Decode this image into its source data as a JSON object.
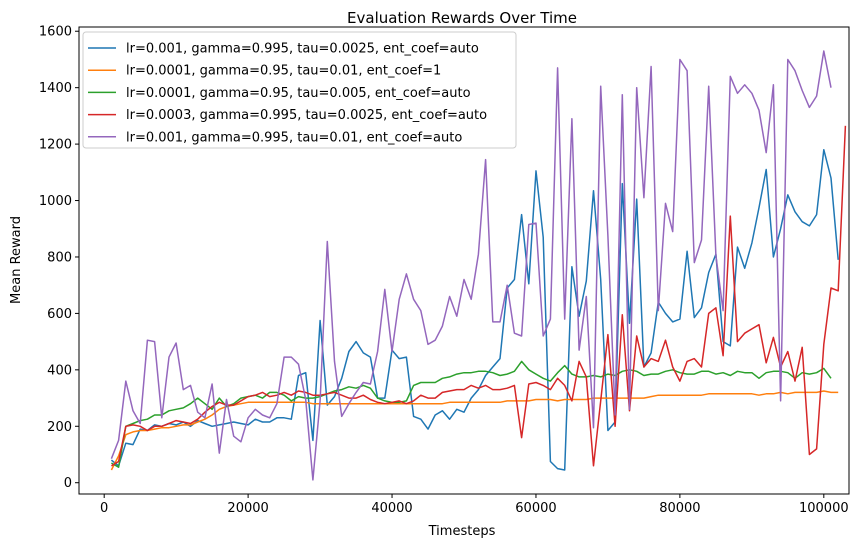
{
  "chart_data": {
    "type": "line",
    "title": "Evaluation Rewards Over Time",
    "xlabel": "Timesteps",
    "ylabel": "Mean Reward",
    "xlim": [
      -3500,
      103500
    ],
    "ylim": [
      -40,
      1615
    ],
    "xticks": [
      0,
      20000,
      40000,
      60000,
      80000,
      100000
    ],
    "xtick_labels": [
      "0",
      "20000",
      "40000",
      "60000",
      "80000",
      "100000"
    ],
    "yticks": [
      0,
      200,
      400,
      600,
      800,
      1000,
      1200,
      1400,
      1600
    ],
    "ytick_labels": [
      "0",
      "200",
      "400",
      "600",
      "800",
      "1000",
      "1200",
      "1400",
      "1600"
    ],
    "grid": false,
    "legend_position": "top-left",
    "x_start": 1000,
    "x_step": 1000,
    "series": [
      {
        "name": "lr=0.001, gamma=0.995, tau=0.0025, ent_coef=auto",
        "color": "#1f77b4",
        "values": [
          80,
          60,
          140,
          135,
          190,
          185,
          205,
          200,
          210,
          205,
          215,
          200,
          220,
          210,
          200,
          205,
          210,
          215,
          210,
          205,
          225,
          215,
          215,
          230,
          230,
          225,
          380,
          390,
          150,
          575,
          275,
          305,
          370,
          465,
          500,
          460,
          445,
          300,
          300,
          470,
          440,
          445,
          235,
          225,
          190,
          240,
          255,
          225,
          260,
          250,
          300,
          330,
          380,
          410,
          440,
          690,
          720,
          950,
          705,
          1105,
          870,
          75,
          50,
          45,
          765,
          590,
          715,
          1035,
          720,
          185,
          215,
          1060,
          565,
          1005,
          410,
          460,
          640,
          600,
          570,
          580,
          820,
          585,
          620,
          745,
          810,
          500,
          485,
          835,
          760,
          850,
          975,
          1110,
          800,
          900,
          1020,
          960,
          925,
          910,
          950,
          1180,
          1080,
          790
        ]
      },
      {
        "name": "lr=0.0001, gamma=0.95, tau=0.01, ent_coef=1",
        "color": "#ff7f0e",
        "values": [
          45,
          95,
          170,
          180,
          185,
          185,
          190,
          195,
          195,
          200,
          205,
          205,
          215,
          225,
          240,
          260,
          270,
          275,
          280,
          285,
          285,
          285,
          285,
          285,
          285,
          285,
          285,
          285,
          280,
          280,
          280,
          280,
          280,
          280,
          280,
          280,
          280,
          280,
          280,
          280,
          280,
          280,
          280,
          280,
          280,
          280,
          280,
          285,
          285,
          285,
          285,
          285,
          285,
          285,
          285,
          290,
          290,
          290,
          290,
          295,
          295,
          295,
          290,
          295,
          295,
          295,
          295,
          300,
          300,
          300,
          300,
          300,
          300,
          300,
          300,
          305,
          310,
          310,
          310,
          310,
          310,
          310,
          310,
          315,
          315,
          315,
          315,
          315,
          315,
          315,
          310,
          315,
          315,
          320,
          315,
          320,
          320,
          320,
          320,
          325,
          320,
          320
        ]
      },
      {
        "name": "lr=0.0001, gamma=0.95, tau=0.005, ent_coef=auto",
        "color": "#2ca02c",
        "values": [
          70,
          55,
          200,
          210,
          220,
          225,
          240,
          240,
          255,
          260,
          265,
          280,
          300,
          280,
          260,
          300,
          270,
          280,
          300,
          305,
          310,
          300,
          320,
          320,
          310,
          290,
          305,
          300,
          300,
          305,
          315,
          325,
          330,
          340,
          335,
          345,
          335,
          300,
          290,
          285,
          285,
          290,
          345,
          355,
          355,
          355,
          370,
          375,
          385,
          390,
          390,
          395,
          395,
          390,
          380,
          385,
          395,
          430,
          400,
          385,
          370,
          360,
          390,
          415,
          385,
          375,
          375,
          380,
          375,
          385,
          380,
          395,
          400,
          395,
          380,
          385,
          385,
          395,
          400,
          390,
          385,
          385,
          395,
          395,
          385,
          390,
          380,
          395,
          390,
          390,
          370,
          390,
          395,
          395,
          390,
          370,
          390,
          385,
          390,
          405,
          370
        ]
      },
      {
        "name": "lr=0.0003, gamma=0.995, tau=0.0025, ent_coef=auto",
        "color": "#d62728",
        "values": [
          60,
          75,
          200,
          205,
          200,
          185,
          200,
          200,
          210,
          220,
          215,
          210,
          225,
          250,
          270,
          285,
          275,
          275,
          290,
          305,
          310,
          320,
          305,
          310,
          320,
          310,
          325,
          320,
          310,
          310,
          315,
          320,
          310,
          300,
          300,
          310,
          295,
          285,
          280,
          285,
          290,
          280,
          290,
          310,
          300,
          300,
          320,
          325,
          330,
          330,
          345,
          335,
          345,
          330,
          330,
          335,
          345,
          160,
          350,
          355,
          345,
          330,
          370,
          345,
          290,
          430,
          375,
          60,
          290,
          525,
          200,
          595,
          255,
          520,
          410,
          440,
          430,
          505,
          410,
          360,
          430,
          440,
          410,
          600,
          620,
          450,
          945,
          500,
          530,
          545,
          560,
          425,
          515,
          410,
          465,
          360,
          480,
          100,
          120,
          490,
          690,
          680,
          1265
        ]
      },
      {
        "name": "lr=0.001, gamma=0.995, tau=0.01, ent_coef=auto",
        "color": "#9467bd",
        "values": [
          85,
          150,
          360,
          255,
          210,
          505,
          500,
          230,
          445,
          495,
          330,
          345,
          250,
          230,
          350,
          105,
          295,
          165,
          145,
          230,
          260,
          240,
          230,
          280,
          445,
          445,
          420,
          295,
          10,
          290,
          855,
          430,
          235,
          280,
          320,
          355,
          350,
          465,
          685,
          465,
          650,
          740,
          650,
          610,
          490,
          505,
          555,
          660,
          590,
          720,
          650,
          810,
          1145,
          570,
          570,
          700,
          530,
          520,
          915,
          920,
          520,
          580,
          1470,
          580,
          1290,
          470,
          660,
          195,
          1405,
          875,
          240,
          1375,
          260,
          1400,
          1010,
          1475,
          610,
          990,
          890,
          1500,
          1460,
          780,
          860,
          1405,
          805,
          610,
          1440,
          1380,
          1410,
          1380,
          1320,
          1170,
          1410,
          290,
          1500,
          1460,
          1390,
          1330,
          1370,
          1530,
          1400
        ]
      }
    ]
  }
}
